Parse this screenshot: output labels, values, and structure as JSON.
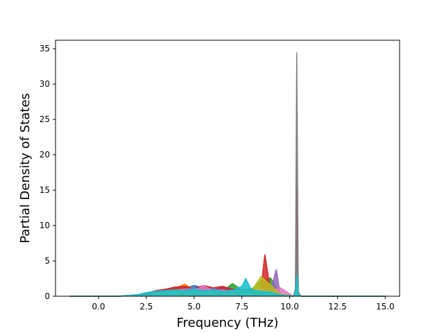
{
  "chart_data": {
    "type": "area",
    "xlabel": "Frequency (THz)",
    "ylabel": "Partial Density of States",
    "xlim": [
      -2.25,
      15.75
    ],
    "ylim": [
      0,
      36.2
    ],
    "xticks": [
      "0.0",
      "2.5",
      "5.0",
      "7.5",
      "10.0",
      "12.5",
      "15.0"
    ],
    "yticks": [
      "0",
      "5",
      "10",
      "15",
      "20",
      "25",
      "30",
      "35"
    ],
    "xtick_values": [
      0,
      2.5,
      5,
      7.5,
      10,
      12.5,
      15
    ],
    "ytick_values": [
      0,
      5,
      10,
      15,
      20,
      25,
      30,
      35
    ],
    "grid": false,
    "legend": "none",
    "series": [
      {
        "color": "#1f77b4",
        "x": [
          -1.5,
          1.0,
          2.0,
          2.5,
          3.0,
          3.5,
          4.0,
          4.5,
          5.0,
          5.5,
          6.0,
          6.5,
          7.0,
          7.5,
          8.0,
          8.5,
          9.0,
          9.5,
          10.2,
          10.3,
          10.37,
          10.45,
          10.6,
          15.0
        ],
        "values": [
          0,
          0,
          0.2,
          0.5,
          0.7,
          0.9,
          1.2,
          1.1,
          1.5,
          1.2,
          1.0,
          1.3,
          0.9,
          0.8,
          0.6,
          0.9,
          0.5,
          0.2,
          0,
          0.5,
          5.0,
          0.3,
          0,
          0
        ]
      },
      {
        "color": "#ff7f0e",
        "x": [
          -1.5,
          1.0,
          2.0,
          2.5,
          3.0,
          3.5,
          4.0,
          4.5,
          5.0,
          5.5,
          6.0,
          6.5,
          7.0,
          7.5,
          8.0,
          8.5,
          9.0,
          9.5,
          10.2,
          10.3,
          10.37,
          10.45,
          10.6,
          15.0
        ],
        "values": [
          0,
          0,
          0.1,
          0.4,
          0.6,
          0.8,
          1.1,
          1.7,
          1.0,
          1.3,
          0.9,
          0.8,
          0.7,
          0.6,
          0.5,
          0.7,
          0.4,
          0.2,
          0,
          0.3,
          2.5,
          0.2,
          0,
          0
        ]
      },
      {
        "color": "#2ca02c",
        "x": [
          -1.5,
          1.0,
          2.0,
          2.5,
          3.0,
          3.5,
          4.0,
          4.5,
          5.0,
          5.5,
          6.0,
          6.5,
          7.0,
          7.5,
          8.0,
          8.5,
          9.0,
          9.5,
          10.2,
          10.3,
          10.37,
          10.45,
          10.6,
          15.0
        ],
        "values": [
          0,
          0,
          0.1,
          0.3,
          0.5,
          0.6,
          0.8,
          0.9,
          0.7,
          0.8,
          0.6,
          0.7,
          1.8,
          0.9,
          1.0,
          2.2,
          2.6,
          0.3,
          0,
          0.4,
          3.0,
          0.2,
          0,
          0
        ]
      },
      {
        "color": "#d62728",
        "x": [
          -1.5,
          1.0,
          2.0,
          2.5,
          3.0,
          3.5,
          4.0,
          4.5,
          5.0,
          5.5,
          6.0,
          6.5,
          7.0,
          7.5,
          8.0,
          8.5,
          8.7,
          9.0,
          9.5,
          10.2,
          10.3,
          10.37,
          10.45,
          10.6,
          15.0
        ],
        "values": [
          0,
          0,
          0.2,
          0.4,
          0.8,
          1.0,
          1.3,
          1.4,
          1.1,
          1.5,
          1.2,
          1.4,
          1.0,
          0.9,
          0.7,
          1.0,
          5.9,
          0.8,
          0.3,
          0,
          1.0,
          15.2,
          0.5,
          0,
          0
        ]
      },
      {
        "color": "#9467bd",
        "x": [
          -1.5,
          1.0,
          2.0,
          2.5,
          3.0,
          3.5,
          4.0,
          4.5,
          5.0,
          5.5,
          6.0,
          6.5,
          7.0,
          7.5,
          8.0,
          8.5,
          9.0,
          9.3,
          9.5,
          10.2,
          10.3,
          10.37,
          10.45,
          10.6,
          15.0
        ],
        "values": [
          0,
          0,
          0.1,
          0.3,
          0.5,
          0.7,
          0.9,
          1.0,
          1.2,
          0.9,
          1.1,
          0.8,
          0.9,
          0.7,
          0.6,
          0.8,
          0.7,
          3.8,
          0.3,
          0,
          0.8,
          5.2,
          0.4,
          0,
          0
        ]
      },
      {
        "color": "#8c564b",
        "x": [
          -1.5,
          1.0,
          2.0,
          2.5,
          3.0,
          3.5,
          4.0,
          4.5,
          5.0,
          5.5,
          6.0,
          6.5,
          7.0,
          7.5,
          8.0,
          8.5,
          9.0,
          9.5,
          10.2,
          10.3,
          10.37,
          10.45,
          10.6,
          15.0
        ],
        "values": [
          0,
          0,
          0.1,
          0.2,
          0.4,
          0.6,
          0.7,
          0.8,
          0.9,
          0.7,
          0.8,
          0.6,
          0.7,
          0.5,
          0.6,
          0.9,
          1.3,
          0.2,
          0,
          0.3,
          2.0,
          0.2,
          0,
          0
        ]
      },
      {
        "color": "#e377c2",
        "x": [
          -1.5,
          1.0,
          2.0,
          2.5,
          3.0,
          3.5,
          4.0,
          4.5,
          5.0,
          5.5,
          6.0,
          6.5,
          7.0,
          7.5,
          8.0,
          8.5,
          9.0,
          9.5,
          10.2,
          10.3,
          10.37,
          10.45,
          10.6,
          15.0
        ],
        "values": [
          0,
          0,
          0.1,
          0.3,
          0.5,
          0.6,
          0.8,
          1.0,
          0.8,
          1.5,
          0.7,
          0.9,
          0.6,
          0.7,
          0.8,
          1.1,
          0.6,
          1.2,
          0,
          0.4,
          3.5,
          0.2,
          0,
          0
        ]
      },
      {
        "color": "#7f7f7f",
        "x": [
          -1.5,
          1.0,
          2.0,
          2.5,
          3.0,
          3.5,
          4.0,
          4.5,
          5.0,
          5.5,
          6.0,
          6.5,
          7.0,
          7.5,
          8.0,
          8.5,
          9.0,
          9.5,
          10.2,
          10.3,
          10.37,
          10.45,
          10.6,
          15.0
        ],
        "values": [
          0,
          0,
          0.1,
          0.3,
          0.4,
          0.5,
          0.6,
          0.7,
          0.6,
          0.7,
          0.5,
          0.6,
          0.5,
          0.6,
          0.5,
          0.7,
          0.5,
          0.3,
          0,
          1.0,
          34.5,
          0.6,
          0,
          0
        ]
      },
      {
        "color": "#bcbd22",
        "x": [
          -1.5,
          1.0,
          2.0,
          2.5,
          3.0,
          3.5,
          4.0,
          4.5,
          5.0,
          5.5,
          6.0,
          6.5,
          7.0,
          7.5,
          8.0,
          8.5,
          9.0,
          9.5,
          10.2,
          10.3,
          10.37,
          10.45,
          10.6,
          15.0
        ],
        "values": [
          0,
          0,
          0.1,
          0.2,
          0.4,
          0.5,
          0.7,
          0.6,
          0.8,
          0.6,
          0.7,
          0.5,
          0.6,
          0.9,
          0.7,
          2.8,
          1.6,
          0.3,
          0,
          0.3,
          2.2,
          0.2,
          0,
          0
        ]
      },
      {
        "color": "#17becf",
        "x": [
          -1.5,
          1.0,
          2.0,
          2.5,
          3.0,
          3.5,
          4.0,
          4.5,
          5.0,
          5.5,
          6.0,
          6.5,
          7.0,
          7.5,
          7.7,
          8.0,
          8.5,
          9.0,
          9.5,
          10.2,
          10.3,
          10.37,
          10.45,
          10.6,
          15.0
        ],
        "values": [
          0,
          0,
          0.2,
          0.5,
          0.7,
          0.8,
          0.9,
          0.8,
          1.0,
          0.8,
          0.9,
          0.7,
          0.8,
          1.4,
          2.5,
          0.9,
          0.7,
          0.6,
          0.2,
          0,
          0.5,
          3.0,
          0.3,
          0,
          0
        ]
      }
    ]
  }
}
